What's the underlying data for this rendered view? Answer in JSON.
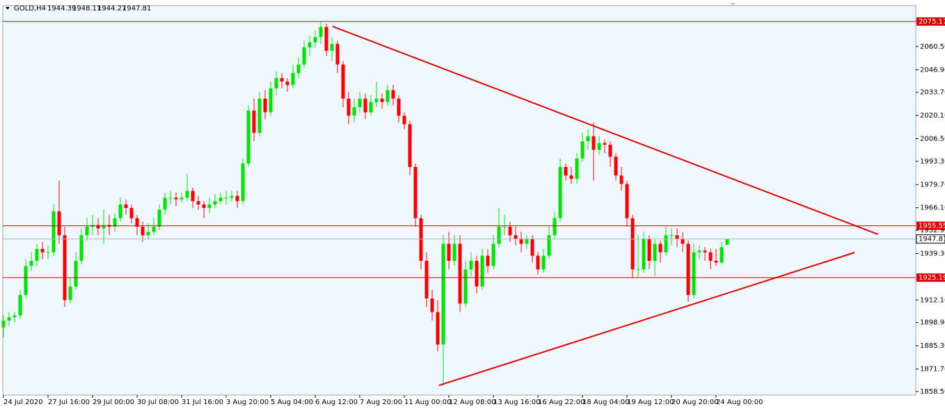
{
  "chart_data": {
    "type": "candlestick",
    "symbol": "GOLD,H4",
    "up_color": "#00e600",
    "down_color": "#ff0000",
    "level_color": "#e00000",
    "trendline_color": "#e00000",
    "current_color": "#a9b4c8",
    "xlim": [
      -0.125,
      163.875
    ],
    "ylim": [
      1856.4,
      2084.5
    ],
    "yticks": [
      {
        "value": 2060.5,
        "label": "2060.50"
      },
      {
        "value": 2046.9,
        "label": "2046.90"
      },
      {
        "value": 2033.7,
        "label": "2033.70"
      },
      {
        "value": 2020.1,
        "label": "2020.10"
      },
      {
        "value": 2006.5,
        "label": "2006.50"
      },
      {
        "value": 1993.3,
        "label": "1993.30"
      },
      {
        "value": 1979.7,
        "label": "1979.70"
      },
      {
        "value": 1966.1,
        "label": "1966.10"
      },
      {
        "value": 1952.9,
        "label": "1952.90"
      },
      {
        "value": 1939.3,
        "label": "1939.30"
      },
      {
        "value": 1912.1,
        "label": "1912.10"
      },
      {
        "value": 1898.9,
        "label": "1898.90"
      },
      {
        "value": 1885.3,
        "label": "1885.30"
      },
      {
        "value": 1871.7,
        "label": "1871.70"
      },
      {
        "value": 1858.5,
        "label": "1858.50"
      }
    ],
    "xticks": [
      {
        "value": 0,
        "label": "24 Jul 2020"
      },
      {
        "value": 8,
        "label": "27 Jul 16:00"
      },
      {
        "value": 16,
        "label": "29 Jul 00:00"
      },
      {
        "value": 24,
        "label": "30 Jul 08:00"
      },
      {
        "value": 32,
        "label": "31 Jul 16:00"
      },
      {
        "value": 40,
        "label": "3 Aug 20:00"
      },
      {
        "value": 48,
        "label": "5 Aug 04:00"
      },
      {
        "value": 56,
        "label": "6 Aug 12:00"
      },
      {
        "value": 64,
        "label": "7 Aug 20:00"
      },
      {
        "value": 72,
        "label": "11 Aug 00:00"
      },
      {
        "value": 80,
        "label": "12 Aug 08:00"
      },
      {
        "value": 88,
        "label": "13 Aug 16:00"
      },
      {
        "value": 96,
        "label": "16 Aug 22:00"
      },
      {
        "value": 104,
        "label": "18 Aug 04:00"
      },
      {
        "value": 112,
        "label": "19 Aug 12:00"
      },
      {
        "value": 120,
        "label": "20 Aug 20:00"
      },
      {
        "value": 128,
        "label": "24 Aug 00:00"
      }
    ],
    "levels": [
      2075.17,
      1955.55,
      1925.19
    ],
    "trendlines": [
      {
        "x": [
          59.1,
          157.1
        ],
        "y": [
          2072.3,
          1950.5
        ]
      },
      {
        "x": [
          78.25,
          152.9
        ],
        "y": [
          1862.1,
          1939.9
        ]
      }
    ],
    "candles": [
      [
        1896,
        1903,
        1890,
        1900
      ],
      [
        1900,
        1905,
        1897,
        1902
      ],
      [
        1902,
        1905,
        1899,
        1903
      ],
      [
        1903,
        1918,
        1901,
        1915
      ],
      [
        1915,
        1936,
        1913,
        1932
      ],
      [
        1932,
        1940,
        1929,
        1935
      ],
      [
        1935,
        1945,
        1932,
        1942
      ],
      [
        1942,
        1946,
        1936,
        1940
      ],
      [
        1940,
        1944,
        1936,
        1940
      ],
      [
        1940,
        1968,
        1938,
        1964
      ],
      [
        1964,
        1982,
        1945,
        1950
      ],
      [
        1950,
        1955,
        1908,
        1912
      ],
      [
        1912,
        1925,
        1910,
        1920
      ],
      [
        1920,
        1940,
        1918,
        1935
      ],
      [
        1935,
        1954,
        1933,
        1950
      ],
      [
        1950,
        1960,
        1947,
        1955
      ],
      [
        1955,
        1962,
        1950,
        1956
      ],
      [
        1956,
        1960,
        1950,
        1954
      ],
      [
        1954,
        1965,
        1945,
        1956
      ],
      [
        1956,
        1962,
        1950,
        1955
      ],
      [
        1955,
        1963,
        1952,
        1960
      ],
      [
        1960,
        1972,
        1958,
        1968
      ],
      [
        1968,
        1971,
        1962,
        1966
      ],
      [
        1966,
        1968,
        1957,
        1960
      ],
      [
        1960,
        1962,
        1950,
        1955
      ],
      [
        1955,
        1958,
        1946,
        1950
      ],
      [
        1950,
        1957,
        1948,
        1952
      ],
      [
        1952,
        1960,
        1950,
        1955
      ],
      [
        1955,
        1968,
        1953,
        1965
      ],
      [
        1965,
        1975,
        1962,
        1972
      ],
      [
        1972,
        1976,
        1968,
        1972
      ],
      [
        1972,
        1975,
        1967,
        1971
      ],
      [
        1971,
        1975,
        1969,
        1972
      ],
      [
        1972,
        1986,
        1970,
        1976
      ],
      [
        1976,
        1978,
        1966,
        1970
      ],
      [
        1970,
        1973,
        1965,
        1968
      ],
      [
        1968,
        1970,
        1960,
        1966
      ],
      [
        1966,
        1972,
        1963,
        1968
      ],
      [
        1968,
        1974,
        1966,
        1970
      ],
      [
        1970,
        1975,
        1968,
        1972
      ],
      [
        1972,
        1976,
        1968,
        1972
      ],
      [
        1972,
        1976,
        1970,
        1973
      ],
      [
        1973,
        1976,
        1966,
        1970
      ],
      [
        1970,
        1995,
        1968,
        1992
      ],
      [
        1992,
        2026,
        1990,
        2023
      ],
      [
        2023,
        2030,
        2005,
        2010
      ],
      [
        2010,
        2034,
        2008,
        2030
      ],
      [
        2030,
        2035,
        2018,
        2022
      ],
      [
        2022,
        2040,
        2020,
        2036
      ],
      [
        2036,
        2046,
        2032,
        2042
      ],
      [
        2042,
        2045,
        2036,
        2040
      ],
      [
        2040,
        2042,
        2034,
        2038
      ],
      [
        2038,
        2050,
        2036,
        2045
      ],
      [
        2045,
        2054,
        2042,
        2050
      ],
      [
        2050,
        2064,
        2048,
        2060
      ],
      [
        2060,
        2067,
        2055,
        2063
      ],
      [
        2063,
        2070,
        2060,
        2066
      ],
      [
        2066,
        2075,
        2062,
        2072
      ],
      [
        2072,
        2074,
        2055,
        2058
      ],
      [
        2058,
        2066,
        2052,
        2062
      ],
      [
        2062,
        2064,
        2045,
        2050
      ],
      [
        2050,
        2052,
        2025,
        2030
      ],
      [
        2030,
        2034,
        2015,
        2020
      ],
      [
        2020,
        2030,
        2016,
        2025
      ],
      [
        2025,
        2034,
        2022,
        2030
      ],
      [
        2030,
        2033,
        2018,
        2022
      ],
      [
        2022,
        2032,
        2020,
        2028
      ],
      [
        2028,
        2040,
        2025,
        2030
      ],
      [
        2030,
        2033,
        2024,
        2028
      ],
      [
        2028,
        2038,
        2026,
        2035
      ],
      [
        2035,
        2038,
        2026,
        2030
      ],
      [
        2030,
        2032,
        2016,
        2020
      ],
      [
        2020,
        2022,
        2012,
        2015
      ],
      [
        2015,
        2017,
        1985,
        1990
      ],
      [
        1990,
        1992,
        1955,
        1960
      ],
      [
        1960,
        1962,
        1930,
        1935
      ],
      [
        1935,
        1940,
        1908,
        1913
      ],
      [
        1913,
        1918,
        1900,
        1905
      ],
      [
        1905,
        1912,
        1882,
        1886
      ],
      [
        1886,
        1950,
        1862,
        1945
      ],
      [
        1945,
        1952,
        1930,
        1935
      ],
      [
        1935,
        1950,
        1932,
        1945
      ],
      [
        1945,
        1950,
        1905,
        1910
      ],
      [
        1910,
        1935,
        1908,
        1930
      ],
      [
        1930,
        1940,
        1926,
        1935
      ],
      [
        1935,
        1938,
        1916,
        1920
      ],
      [
        1920,
        1942,
        1918,
        1938
      ],
      [
        1938,
        1942,
        1928,
        1932
      ],
      [
        1932,
        1950,
        1930,
        1945
      ],
      [
        1945,
        1966,
        1943,
        1955
      ],
      [
        1955,
        1962,
        1950,
        1955
      ],
      [
        1955,
        1958,
        1946,
        1950
      ],
      [
        1950,
        1955,
        1944,
        1948
      ],
      [
        1948,
        1952,
        1940,
        1945
      ],
      [
        1945,
        1950,
        1942,
        1948
      ],
      [
        1948,
        1950,
        1934,
        1938
      ],
      [
        1938,
        1940,
        1927,
        1930
      ],
      [
        1930,
        1942,
        1928,
        1938
      ],
      [
        1938,
        1955,
        1936,
        1950
      ],
      [
        1950,
        1964,
        1948,
        1960
      ],
      [
        1960,
        1995,
        1958,
        1990
      ],
      [
        1990,
        1992,
        1982,
        1985
      ],
      [
        1985,
        1990,
        1980,
        1983
      ],
      [
        1983,
        1998,
        1980,
        1995
      ],
      [
        1995,
        2010,
        1993,
        2005
      ],
      [
        2005,
        2012,
        2000,
        2008
      ],
      [
        2008,
        2016,
        1982,
        2000
      ],
      [
        2000,
        2008,
        1997,
        2004
      ],
      [
        2004,
        2006,
        1998,
        2003
      ],
      [
        2003,
        2005,
        1990,
        1996
      ],
      [
        1996,
        1998,
        1982,
        1985
      ],
      [
        1985,
        1990,
        1976,
        1980
      ],
      [
        1980,
        1982,
        1955,
        1960
      ],
      [
        1960,
        1962,
        1925,
        1930
      ],
      [
        1930,
        1950,
        1925,
        1930
      ],
      [
        1930,
        1952,
        1928,
        1948
      ],
      [
        1948,
        1950,
        1930,
        1935
      ],
      [
        1935,
        1948,
        1926,
        1945
      ],
      [
        1945,
        1947,
        1934,
        1940
      ],
      [
        1940,
        1955,
        1938,
        1950
      ],
      [
        1950,
        1954,
        1944,
        1950
      ],
      [
        1950,
        1954,
        1943,
        1948
      ],
      [
        1948,
        1952,
        1940,
        1945
      ],
      [
        1945,
        1947,
        1911,
        1915
      ],
      [
        1915,
        1945,
        1913,
        1940
      ],
      [
        1940,
        1944,
        1936,
        1941
      ],
      [
        1941,
        1943,
        1935,
        1940
      ],
      [
        1940,
        1942,
        1930,
        1935
      ],
      [
        1935,
        1942,
        1932,
        1934
      ],
      [
        1934,
        1946,
        1933,
        1943
      ],
      [
        1944.39,
        1948.11,
        1944.27,
        1947.81
      ]
    ]
  }
}
